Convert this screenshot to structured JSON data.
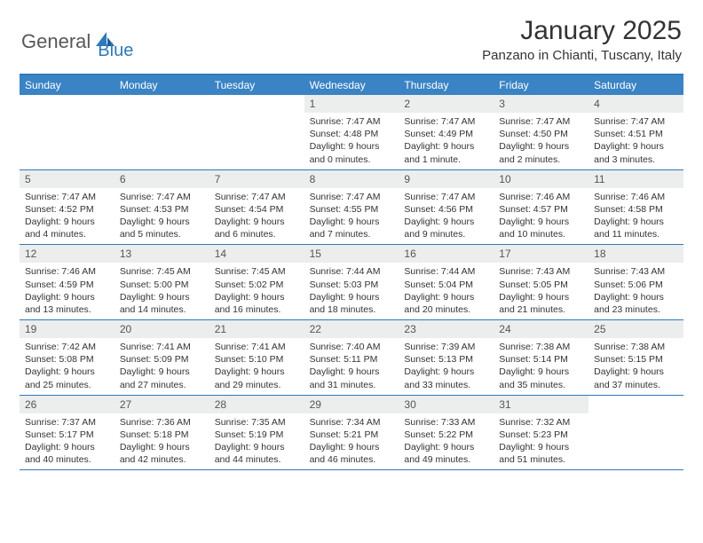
{
  "brand": {
    "general": "General",
    "blue": "Blue"
  },
  "title": "January 2025",
  "location": "Panzano in Chianti, Tuscany, Italy",
  "colors": {
    "header_bar": "#3a83c4",
    "accent_border": "#2f79b9",
    "daynum_bg": "#eceded",
    "text": "#333333",
    "logo_gray": "#585858",
    "logo_blue": "#2f79b9"
  },
  "weekdays": [
    "Sunday",
    "Monday",
    "Tuesday",
    "Wednesday",
    "Thursday",
    "Friday",
    "Saturday"
  ],
  "weeks": [
    [
      null,
      null,
      null,
      {
        "n": "1",
        "sr": "7:47 AM",
        "ss": "4:48 PM",
        "dl": "9 hours and 0 minutes."
      },
      {
        "n": "2",
        "sr": "7:47 AM",
        "ss": "4:49 PM",
        "dl": "9 hours and 1 minute."
      },
      {
        "n": "3",
        "sr": "7:47 AM",
        "ss": "4:50 PM",
        "dl": "9 hours and 2 minutes."
      },
      {
        "n": "4",
        "sr": "7:47 AM",
        "ss": "4:51 PM",
        "dl": "9 hours and 3 minutes."
      }
    ],
    [
      {
        "n": "5",
        "sr": "7:47 AM",
        "ss": "4:52 PM",
        "dl": "9 hours and 4 minutes."
      },
      {
        "n": "6",
        "sr": "7:47 AM",
        "ss": "4:53 PM",
        "dl": "9 hours and 5 minutes."
      },
      {
        "n": "7",
        "sr": "7:47 AM",
        "ss": "4:54 PM",
        "dl": "9 hours and 6 minutes."
      },
      {
        "n": "8",
        "sr": "7:47 AM",
        "ss": "4:55 PM",
        "dl": "9 hours and 7 minutes."
      },
      {
        "n": "9",
        "sr": "7:47 AM",
        "ss": "4:56 PM",
        "dl": "9 hours and 9 minutes."
      },
      {
        "n": "10",
        "sr": "7:46 AM",
        "ss": "4:57 PM",
        "dl": "9 hours and 10 minutes."
      },
      {
        "n": "11",
        "sr": "7:46 AM",
        "ss": "4:58 PM",
        "dl": "9 hours and 11 minutes."
      }
    ],
    [
      {
        "n": "12",
        "sr": "7:46 AM",
        "ss": "4:59 PM",
        "dl": "9 hours and 13 minutes."
      },
      {
        "n": "13",
        "sr": "7:45 AM",
        "ss": "5:00 PM",
        "dl": "9 hours and 14 minutes."
      },
      {
        "n": "14",
        "sr": "7:45 AM",
        "ss": "5:02 PM",
        "dl": "9 hours and 16 minutes."
      },
      {
        "n": "15",
        "sr": "7:44 AM",
        "ss": "5:03 PM",
        "dl": "9 hours and 18 minutes."
      },
      {
        "n": "16",
        "sr": "7:44 AM",
        "ss": "5:04 PM",
        "dl": "9 hours and 20 minutes."
      },
      {
        "n": "17",
        "sr": "7:43 AM",
        "ss": "5:05 PM",
        "dl": "9 hours and 21 minutes."
      },
      {
        "n": "18",
        "sr": "7:43 AM",
        "ss": "5:06 PM",
        "dl": "9 hours and 23 minutes."
      }
    ],
    [
      {
        "n": "19",
        "sr": "7:42 AM",
        "ss": "5:08 PM",
        "dl": "9 hours and 25 minutes."
      },
      {
        "n": "20",
        "sr": "7:41 AM",
        "ss": "5:09 PM",
        "dl": "9 hours and 27 minutes."
      },
      {
        "n": "21",
        "sr": "7:41 AM",
        "ss": "5:10 PM",
        "dl": "9 hours and 29 minutes."
      },
      {
        "n": "22",
        "sr": "7:40 AM",
        "ss": "5:11 PM",
        "dl": "9 hours and 31 minutes."
      },
      {
        "n": "23",
        "sr": "7:39 AM",
        "ss": "5:13 PM",
        "dl": "9 hours and 33 minutes."
      },
      {
        "n": "24",
        "sr": "7:38 AM",
        "ss": "5:14 PM",
        "dl": "9 hours and 35 minutes."
      },
      {
        "n": "25",
        "sr": "7:38 AM",
        "ss": "5:15 PM",
        "dl": "9 hours and 37 minutes."
      }
    ],
    [
      {
        "n": "26",
        "sr": "7:37 AM",
        "ss": "5:17 PM",
        "dl": "9 hours and 40 minutes."
      },
      {
        "n": "27",
        "sr": "7:36 AM",
        "ss": "5:18 PM",
        "dl": "9 hours and 42 minutes."
      },
      {
        "n": "28",
        "sr": "7:35 AM",
        "ss": "5:19 PM",
        "dl": "9 hours and 44 minutes."
      },
      {
        "n": "29",
        "sr": "7:34 AM",
        "ss": "5:21 PM",
        "dl": "9 hours and 46 minutes."
      },
      {
        "n": "30",
        "sr": "7:33 AM",
        "ss": "5:22 PM",
        "dl": "9 hours and 49 minutes."
      },
      {
        "n": "31",
        "sr": "7:32 AM",
        "ss": "5:23 PM",
        "dl": "9 hours and 51 minutes."
      },
      null
    ]
  ],
  "labels": {
    "sunrise": "Sunrise:",
    "sunset": "Sunset:",
    "daylight": "Daylight:"
  }
}
